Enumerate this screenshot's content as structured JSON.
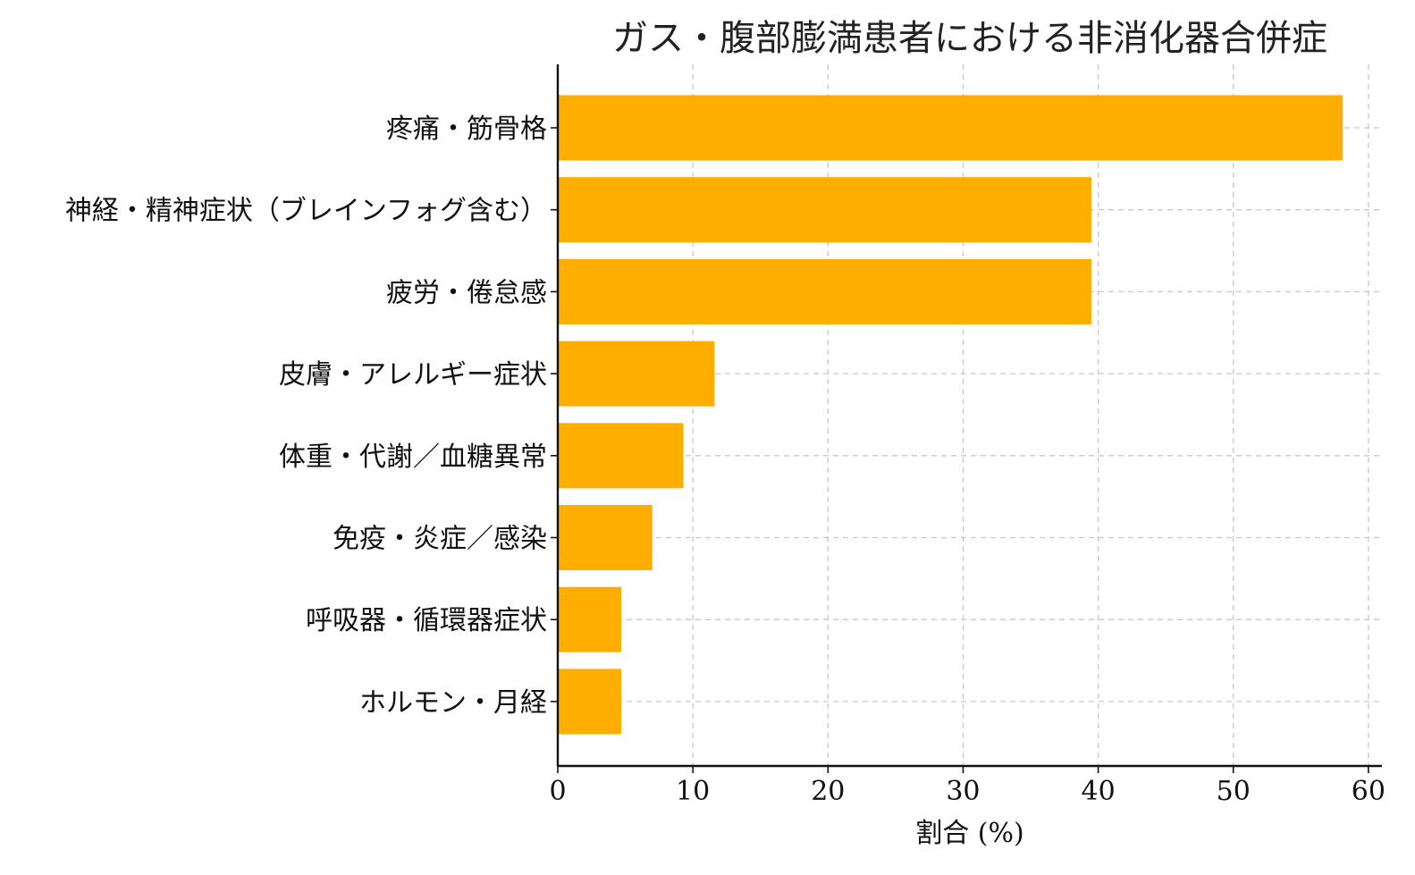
{
  "chart_data": {
    "type": "bar",
    "orientation": "horizontal",
    "title": "ガス・腹部膨満患者における非消化器合併症",
    "xlabel": "割合 (%)",
    "ylabel": "",
    "xlim": [
      0,
      61
    ],
    "xticks": [
      0,
      10,
      20,
      30,
      40,
      50,
      60
    ],
    "grid": true,
    "bar_color": "#FFAE00",
    "categories": [
      "疼痛・筋骨格",
      "神経・精神症状（ブレインフォグ含む）",
      "疲労・倦怠感",
      "皮膚・アレルギー症状",
      "体重・代謝／血糖異常",
      "免疫・炎症／感染",
      "呼吸器・循環器症状",
      "ホルモン・月経"
    ],
    "values": [
      58.1,
      39.5,
      39.5,
      11.6,
      9.3,
      7.0,
      4.7,
      4.7
    ]
  }
}
